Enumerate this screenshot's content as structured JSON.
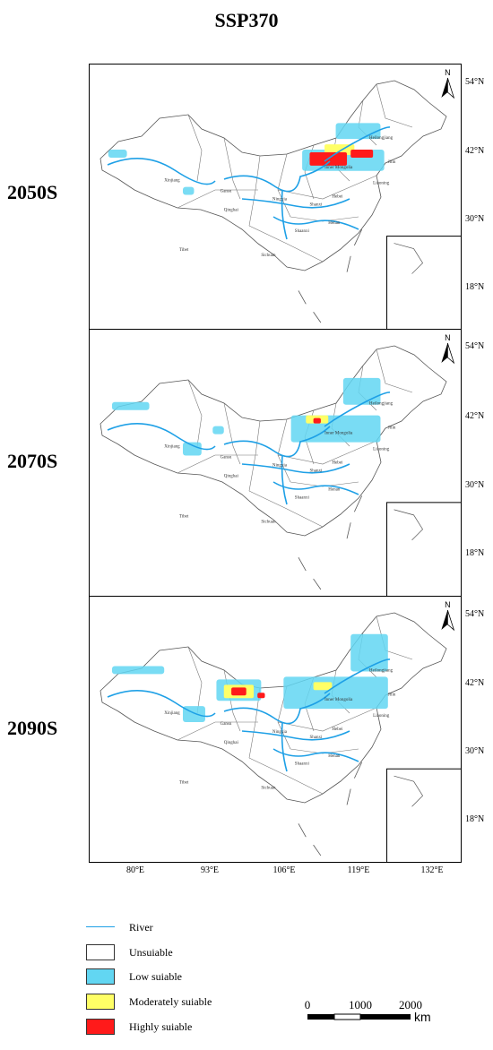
{
  "title": "SSP370",
  "panels": [
    {
      "label": "2050S"
    },
    {
      "label": "2070S"
    },
    {
      "label": "2090S"
    }
  ],
  "lat_ticks": [
    "54°N",
    "42°N",
    "30°N",
    "18°N"
  ],
  "lon_ticks": [
    "80°E",
    "93°E",
    "106°E",
    "119°E",
    "132°E"
  ],
  "north_label": "N",
  "place_names": [
    "Heilongjiang",
    "Jilin",
    "Inner Mongolia",
    "Liaoning",
    "Xinjiang",
    "Gansu",
    "Qinghai",
    "Ningxia",
    "Shanxi",
    "Hebei",
    "Shaanxi",
    "Henan",
    "Tibet",
    "Sichuan"
  ],
  "legend": {
    "river": "River",
    "unsuitable": "Unsuiable",
    "low": "Low suiable",
    "moderate": "Moderately suiable",
    "high": "Highly suiable"
  },
  "scale": {
    "t0": "0",
    "t1": "1000",
    "t2": "2000",
    "unit": "km"
  },
  "colors": {
    "river": "#1ea0e6",
    "low": "#62d6f2",
    "moderate": "#ffff66",
    "high": "#ff1a1a"
  }
}
